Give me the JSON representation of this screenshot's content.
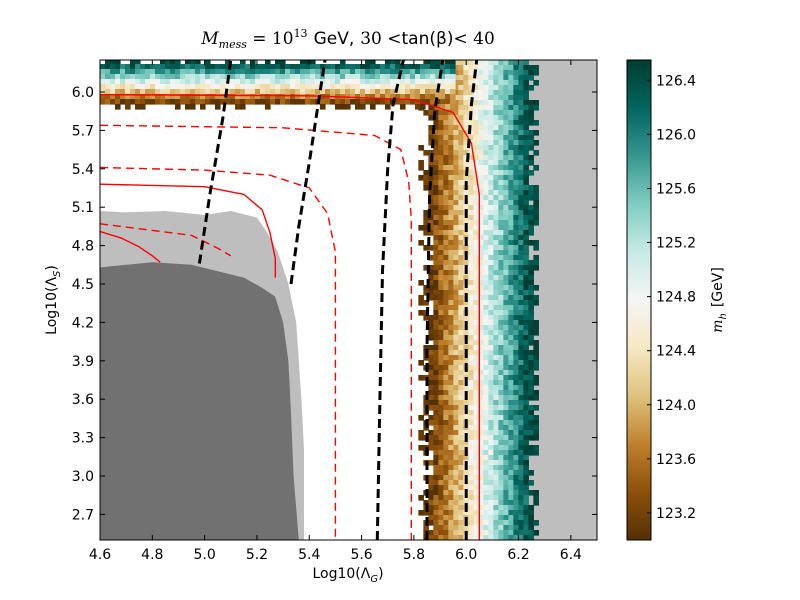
{
  "chart_data": {
    "type": "heatmap",
    "title": "M_mess = 10^13  GeV, 30 < tan(β) < 40",
    "title_parts": {
      "m": "M",
      "m_sub": "mess",
      "eq": " = 10",
      "exp": "13",
      "gev": "GeV,",
      "lo": "30 <",
      "tan": "tan(β)",
      "hi": "< 40"
    },
    "xlabel": "Log10(Λ_G)",
    "xlabel_parts": {
      "pre": "Log10(Λ",
      "sub": "G",
      "post": ")"
    },
    "ylabel": "Log10(Λ_S)",
    "ylabel_parts": {
      "pre": "Log10(Λ",
      "sub": "S",
      "post": ")"
    },
    "xlim": [
      4.6,
      6.5
    ],
    "ylim": [
      2.5,
      6.25
    ],
    "xticks": [
      "4.6",
      "4.8",
      "5.0",
      "5.2",
      "5.4",
      "5.6",
      "5.8",
      "6.0",
      "6.2",
      "6.4"
    ],
    "yticks": [
      "2.7",
      "3.0",
      "3.3",
      "3.6",
      "3.9",
      "4.2",
      "4.5",
      "4.8",
      "5.1",
      "5.4",
      "5.7",
      "6.0"
    ],
    "colorbar": {
      "label": "m_h [GeV]",
      "label_parts": {
        "m": "m",
        "sub": "h",
        "unit": "[GeV]"
      },
      "range": [
        123.0,
        126.55
      ],
      "ticks": [
        "123.2",
        "123.6",
        "124.0",
        "124.4",
        "124.8",
        "125.2",
        "125.6",
        "126.0",
        "126.4"
      ],
      "colors": [
        "#543005",
        "#8c510a",
        "#bf812d",
        "#dfc27d",
        "#f6e8c3",
        "#f5f5f5",
        "#c7eae5",
        "#80cdc1",
        "#35978f",
        "#01665e",
        "#003c30"
      ]
    },
    "band": {
      "description": "m_h colour band, L-shaped",
      "inner_edge_x": 5.84,
      "outer_edge_x": 6.25,
      "inner_edge_y": 5.92,
      "outer_edge_y": 6.25,
      "value_inner": 123.0,
      "value_outer": 126.5
    },
    "regions": [
      {
        "name": "excluded-region",
        "color": "#bebebe",
        "x_min": 6.24,
        "y_min": 2.5
      },
      {
        "name": "light-grey-region",
        "color": "#bebebe",
        "boundary": [
          [
            4.6,
            5.07
          ],
          [
            4.7,
            5.06
          ],
          [
            4.85,
            5.07
          ],
          [
            5.0,
            5.04
          ],
          [
            5.1,
            5.07
          ],
          [
            5.2,
            5.02
          ],
          [
            5.24,
            4.9
          ],
          [
            5.28,
            4.75
          ],
          [
            5.32,
            4.5
          ],
          [
            5.35,
            4.2
          ],
          [
            5.36,
            3.9
          ],
          [
            5.37,
            3.6
          ],
          [
            5.38,
            3.2
          ],
          [
            5.38,
            2.5
          ]
        ]
      },
      {
        "name": "dark-grey-region",
        "color": "#717171",
        "boundary": [
          [
            4.6,
            4.63
          ],
          [
            4.7,
            4.65
          ],
          [
            4.8,
            4.67
          ],
          [
            4.95,
            4.65
          ],
          [
            5.05,
            4.6
          ],
          [
            5.15,
            4.55
          ],
          [
            5.22,
            4.47
          ],
          [
            5.27,
            4.4
          ],
          [
            5.3,
            4.2
          ],
          [
            5.32,
            3.9
          ],
          [
            5.33,
            3.5
          ],
          [
            5.34,
            3.0
          ],
          [
            5.36,
            2.5
          ]
        ]
      }
    ],
    "series": [
      {
        "name": "red-solid-1",
        "style": "solid",
        "color": "#ff0000",
        "x": [
          4.6,
          5.4,
          5.8,
          5.95,
          6.02,
          6.05,
          6.05
        ],
        "y": [
          5.98,
          5.97,
          5.94,
          5.84,
          5.6,
          5.2,
          2.5
        ]
      },
      {
        "name": "red-solid-2",
        "style": "solid",
        "color": "#ff0000",
        "x": [
          4.6,
          5.0,
          5.15,
          5.22,
          5.25,
          5.27,
          5.27
        ],
        "y": [
          5.28,
          5.26,
          5.2,
          5.08,
          4.9,
          4.7,
          4.55
        ]
      },
      {
        "name": "red-solid-3",
        "style": "solid",
        "color": "#ff0000",
        "x": [
          4.6,
          4.68,
          4.75,
          4.8,
          4.83
        ],
        "y": [
          4.91,
          4.86,
          4.79,
          4.72,
          4.67
        ]
      },
      {
        "name": "red-dashed-1",
        "style": "dashed",
        "color": "#ff0000",
        "x": [
          4.6,
          5.3,
          5.65,
          5.75,
          5.78,
          5.79,
          5.79
        ],
        "y": [
          5.74,
          5.72,
          5.66,
          5.55,
          5.3,
          5.0,
          2.5
        ]
      },
      {
        "name": "red-dashed-2",
        "style": "dashed",
        "color": "#ff0000",
        "x": [
          4.6,
          5.0,
          5.25,
          5.4,
          5.47,
          5.5,
          5.5
        ],
        "y": [
          5.41,
          5.39,
          5.35,
          5.25,
          5.05,
          4.75,
          2.5
        ]
      },
      {
        "name": "red-dashed-3",
        "style": "dashed",
        "color": "#ff0000",
        "x": [
          4.6,
          4.95,
          5.05,
          5.1
        ],
        "y": [
          4.97,
          4.88,
          4.78,
          4.72
        ]
      },
      {
        "name": "black-dashed-1",
        "style": "dashed",
        "color": "#000000",
        "x": [
          4.98,
          5.02,
          5.07,
          5.1
        ],
        "y": [
          4.66,
          5.2,
          5.8,
          6.25
        ]
      },
      {
        "name": "black-dashed-2",
        "style": "dashed",
        "color": "#000000",
        "x": [
          5.33,
          5.36,
          5.4,
          5.43,
          5.46
        ],
        "y": [
          4.5,
          4.95,
          5.45,
          5.85,
          6.25
        ]
      },
      {
        "name": "black-dashed-3",
        "style": "dashed",
        "color": "#000000",
        "x": [
          5.66,
          5.67,
          5.68,
          5.7,
          5.72,
          5.76
        ],
        "y": [
          2.5,
          3.6,
          4.6,
          5.4,
          5.9,
          6.25
        ]
      },
      {
        "name": "black-dashed-4",
        "style": "dashed",
        "color": "#000000",
        "x": [
          5.85,
          5.85,
          5.86,
          5.88,
          5.91
        ],
        "y": [
          2.5,
          4.0,
          5.2,
          5.85,
          6.25
        ]
      },
      {
        "name": "black-dashed-5",
        "style": "dashed",
        "color": "#000000",
        "x": [
          6.0,
          6.0,
          6.0,
          6.02,
          6.04
        ],
        "y": [
          2.5,
          4.0,
          5.3,
          5.9,
          6.25
        ]
      }
    ]
  }
}
